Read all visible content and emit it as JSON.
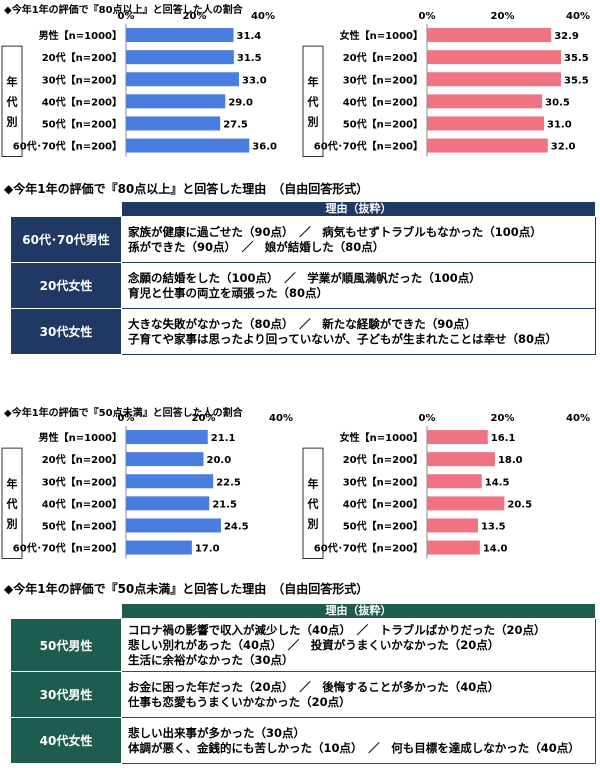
{
  "headings": {
    "h1": "◆今年1年の評価で『80点以上』と回答した人の割合",
    "h2": "◆今年1年の評価で『80点以上』と回答した理由　（自由回答形式）",
    "h3": "◆今年1年の評価で『50点未満』と回答した人の割合",
    "h4": "◆今年1年の評価で『50点未満』と回答した理由　（自由回答形式）"
  },
  "age_group_label": "年代別",
  "colors": {
    "male_bar": "#4a7de0",
    "female_bar": "#f07382",
    "navy": "#1f3864",
    "teal": "#1f5c50"
  },
  "chart_data": [
    {
      "type": "bar",
      "orientation": "horizontal",
      "group": "男性",
      "xlim": [
        0,
        40
      ],
      "ticks": [
        "0%",
        "20%",
        "40%"
      ],
      "categories": [
        "男性【n=1000】",
        "20代【n=200】",
        "30代【n=200】",
        "40代【n=200】",
        "50代【n=200】",
        "60代･70代【n=200】"
      ],
      "values": [
        31.4,
        31.5,
        33.0,
        29.0,
        27.5,
        36.0
      ],
      "labels": [
        "31.4",
        "31.5",
        "33.0",
        "29.0",
        "27.5",
        "36.0"
      ]
    },
    {
      "type": "bar",
      "orientation": "horizontal",
      "group": "女性",
      "xlim": [
        0,
        40
      ],
      "ticks": [
        "0%",
        "20%",
        "40%"
      ],
      "categories": [
        "女性【n=1000】",
        "20代【n=200】",
        "30代【n=200】",
        "40代【n=200】",
        "50代【n=200】",
        "60代･70代【n=200】"
      ],
      "values": [
        32.9,
        35.5,
        35.5,
        30.5,
        31.0,
        32.0
      ],
      "labels": [
        "32.9",
        "35.5",
        "35.5",
        "30.5",
        "31.0",
        "32.0"
      ]
    },
    {
      "type": "bar",
      "orientation": "horizontal",
      "group": "男性",
      "xlim": [
        0,
        40
      ],
      "ticks": [
        "0%",
        "20%",
        "40%"
      ],
      "categories": [
        "男性【n=1000】",
        "20代【n=200】",
        "30代【n=200】",
        "40代【n=200】",
        "50代【n=200】",
        "60代･70代【n=200】"
      ],
      "values": [
        21.1,
        20.0,
        22.5,
        21.5,
        24.5,
        17.0
      ],
      "labels": [
        "21.1",
        "20.0",
        "22.5",
        "21.5",
        "24.5",
        "17.0"
      ]
    },
    {
      "type": "bar",
      "orientation": "horizontal",
      "group": "女性",
      "xlim": [
        0,
        40
      ],
      "ticks": [
        "0%",
        "20%",
        "40%"
      ],
      "categories": [
        "女性【n=1000】",
        "20代【n=200】",
        "30代【n=200】",
        "40代【n=200】",
        "50代【n=200】",
        "60代･70代【n=200】"
      ],
      "values": [
        16.1,
        18.0,
        14.5,
        20.5,
        13.5,
        14.0
      ],
      "labels": [
        "16.1",
        "18.0",
        "14.5",
        "20.5",
        "13.5",
        "14.0"
      ]
    }
  ],
  "table1": {
    "header": "理由（抜粋）",
    "rows": [
      {
        "label": "60代･70代男性",
        "lines": [
          "家族が健康に過ごせた（90点）　／　病気もせずトラブルもなかった（100点）",
          "孫ができた（90点）　／　娘が結婚した（80点）"
        ]
      },
      {
        "label": "20代女性",
        "lines": [
          "念願の結婚をした（100点）　／　学業が順風満帆だった（100点）",
          "育児と仕事の両立を頑張った（80点）"
        ]
      },
      {
        "label": "30代女性",
        "lines": [
          "大きな失敗がなかった（80点）　／　新たな経験ができた（90点）",
          "子育てや家事は思ったより回っていないが、子どもが生まれたことは幸せ（80点）"
        ]
      }
    ]
  },
  "table2": {
    "header": "理由（抜粋）",
    "rows": [
      {
        "label": "50代男性",
        "lines": [
          "コロナ禍の影響で収入が減少した（40点）　／　トラブルばかりだった（20点）",
          "悲しい別れがあった（40点）　／　投資がうまくいかなかった（20点）",
          "生活に余裕がなかった（30点）"
        ]
      },
      {
        "label": "30代男性",
        "lines": [
          "お金に困った年だった（20点）　／　後悔することが多かった（40点）",
          "仕事も恋愛もうまくいかなかった（20点）"
        ]
      },
      {
        "label": "40代女性",
        "lines": [
          "悲しい出来事が多かった（30点）",
          "体調が悪く、金銭的にも苦しかった（10点）　／　何も目標を達成しなかった（40点）"
        ]
      }
    ]
  }
}
